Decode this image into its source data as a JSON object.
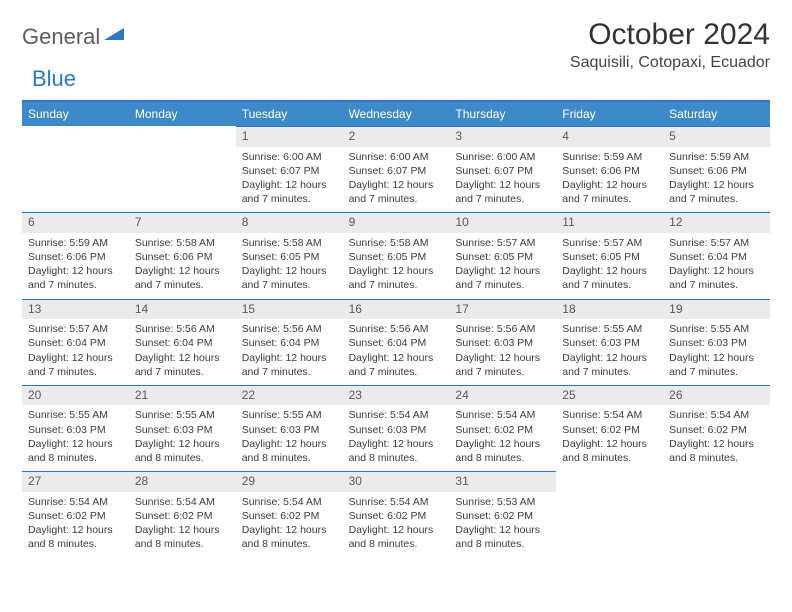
{
  "brand": {
    "part1": "General",
    "part2": "Blue"
  },
  "colors": {
    "accent": "#2d78bf",
    "header_bg": "#3e8ac9",
    "daynum_bg": "#ebebeb",
    "text": "#333333"
  },
  "title": "October 2024",
  "location": "Saquisili, Cotopaxi, Ecuador",
  "day_names": [
    "Sunday",
    "Monday",
    "Tuesday",
    "Wednesday",
    "Thursday",
    "Friday",
    "Saturday"
  ],
  "weeks": [
    [
      {
        "empty": true
      },
      {
        "empty": true
      },
      {
        "n": "1",
        "sr": "Sunrise: 6:00 AM",
        "ss": "Sunset: 6:07 PM",
        "dl": "Daylight: 12 hours and 7 minutes."
      },
      {
        "n": "2",
        "sr": "Sunrise: 6:00 AM",
        "ss": "Sunset: 6:07 PM",
        "dl": "Daylight: 12 hours and 7 minutes."
      },
      {
        "n": "3",
        "sr": "Sunrise: 6:00 AM",
        "ss": "Sunset: 6:07 PM",
        "dl": "Daylight: 12 hours and 7 minutes."
      },
      {
        "n": "4",
        "sr": "Sunrise: 5:59 AM",
        "ss": "Sunset: 6:06 PM",
        "dl": "Daylight: 12 hours and 7 minutes."
      },
      {
        "n": "5",
        "sr": "Sunrise: 5:59 AM",
        "ss": "Sunset: 6:06 PM",
        "dl": "Daylight: 12 hours and 7 minutes."
      }
    ],
    [
      {
        "n": "6",
        "sr": "Sunrise: 5:59 AM",
        "ss": "Sunset: 6:06 PM",
        "dl": "Daylight: 12 hours and 7 minutes."
      },
      {
        "n": "7",
        "sr": "Sunrise: 5:58 AM",
        "ss": "Sunset: 6:06 PM",
        "dl": "Daylight: 12 hours and 7 minutes."
      },
      {
        "n": "8",
        "sr": "Sunrise: 5:58 AM",
        "ss": "Sunset: 6:05 PM",
        "dl": "Daylight: 12 hours and 7 minutes."
      },
      {
        "n": "9",
        "sr": "Sunrise: 5:58 AM",
        "ss": "Sunset: 6:05 PM",
        "dl": "Daylight: 12 hours and 7 minutes."
      },
      {
        "n": "10",
        "sr": "Sunrise: 5:57 AM",
        "ss": "Sunset: 6:05 PM",
        "dl": "Daylight: 12 hours and 7 minutes."
      },
      {
        "n": "11",
        "sr": "Sunrise: 5:57 AM",
        "ss": "Sunset: 6:05 PM",
        "dl": "Daylight: 12 hours and 7 minutes."
      },
      {
        "n": "12",
        "sr": "Sunrise: 5:57 AM",
        "ss": "Sunset: 6:04 PM",
        "dl": "Daylight: 12 hours and 7 minutes."
      }
    ],
    [
      {
        "n": "13",
        "sr": "Sunrise: 5:57 AM",
        "ss": "Sunset: 6:04 PM",
        "dl": "Daylight: 12 hours and 7 minutes."
      },
      {
        "n": "14",
        "sr": "Sunrise: 5:56 AM",
        "ss": "Sunset: 6:04 PM",
        "dl": "Daylight: 12 hours and 7 minutes."
      },
      {
        "n": "15",
        "sr": "Sunrise: 5:56 AM",
        "ss": "Sunset: 6:04 PM",
        "dl": "Daylight: 12 hours and 7 minutes."
      },
      {
        "n": "16",
        "sr": "Sunrise: 5:56 AM",
        "ss": "Sunset: 6:04 PM",
        "dl": "Daylight: 12 hours and 7 minutes."
      },
      {
        "n": "17",
        "sr": "Sunrise: 5:56 AM",
        "ss": "Sunset: 6:03 PM",
        "dl": "Daylight: 12 hours and 7 minutes."
      },
      {
        "n": "18",
        "sr": "Sunrise: 5:55 AM",
        "ss": "Sunset: 6:03 PM",
        "dl": "Daylight: 12 hours and 7 minutes."
      },
      {
        "n": "19",
        "sr": "Sunrise: 5:55 AM",
        "ss": "Sunset: 6:03 PM",
        "dl": "Daylight: 12 hours and 7 minutes."
      }
    ],
    [
      {
        "n": "20",
        "sr": "Sunrise: 5:55 AM",
        "ss": "Sunset: 6:03 PM",
        "dl": "Daylight: 12 hours and 8 minutes."
      },
      {
        "n": "21",
        "sr": "Sunrise: 5:55 AM",
        "ss": "Sunset: 6:03 PM",
        "dl": "Daylight: 12 hours and 8 minutes."
      },
      {
        "n": "22",
        "sr": "Sunrise: 5:55 AM",
        "ss": "Sunset: 6:03 PM",
        "dl": "Daylight: 12 hours and 8 minutes."
      },
      {
        "n": "23",
        "sr": "Sunrise: 5:54 AM",
        "ss": "Sunset: 6:03 PM",
        "dl": "Daylight: 12 hours and 8 minutes."
      },
      {
        "n": "24",
        "sr": "Sunrise: 5:54 AM",
        "ss": "Sunset: 6:02 PM",
        "dl": "Daylight: 12 hours and 8 minutes."
      },
      {
        "n": "25",
        "sr": "Sunrise: 5:54 AM",
        "ss": "Sunset: 6:02 PM",
        "dl": "Daylight: 12 hours and 8 minutes."
      },
      {
        "n": "26",
        "sr": "Sunrise: 5:54 AM",
        "ss": "Sunset: 6:02 PM",
        "dl": "Daylight: 12 hours and 8 minutes."
      }
    ],
    [
      {
        "n": "27",
        "sr": "Sunrise: 5:54 AM",
        "ss": "Sunset: 6:02 PM",
        "dl": "Daylight: 12 hours and 8 minutes."
      },
      {
        "n": "28",
        "sr": "Sunrise: 5:54 AM",
        "ss": "Sunset: 6:02 PM",
        "dl": "Daylight: 12 hours and 8 minutes."
      },
      {
        "n": "29",
        "sr": "Sunrise: 5:54 AM",
        "ss": "Sunset: 6:02 PM",
        "dl": "Daylight: 12 hours and 8 minutes."
      },
      {
        "n": "30",
        "sr": "Sunrise: 5:54 AM",
        "ss": "Sunset: 6:02 PM",
        "dl": "Daylight: 12 hours and 8 minutes."
      },
      {
        "n": "31",
        "sr": "Sunrise: 5:53 AM",
        "ss": "Sunset: 6:02 PM",
        "dl": "Daylight: 12 hours and 8 minutes."
      },
      {
        "empty": true
      },
      {
        "empty": true
      }
    ]
  ]
}
